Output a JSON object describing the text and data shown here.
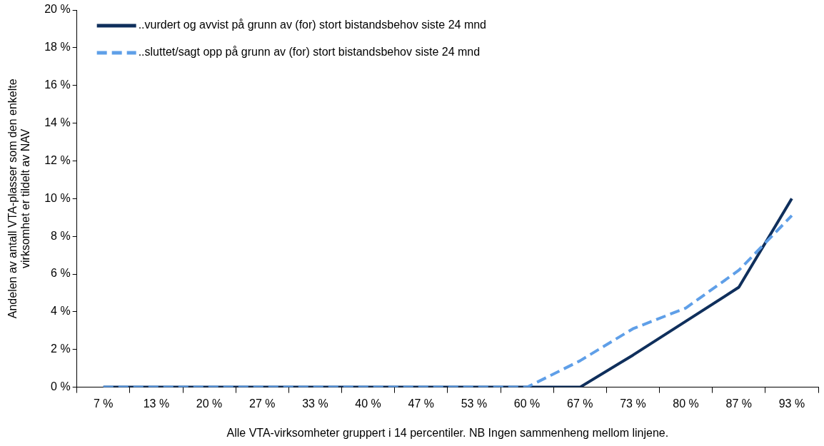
{
  "chart_data": {
    "type": "line",
    "xlabel": "Alle VTA-virksomheter gruppert i 14 percentiler. NB Ingen sammenheng mellom linjene.",
    "ylabel": "Andelen av antall VTA-plasser som den enkelte\nvirksomhet er tildelt av NAV",
    "categories": [
      "7 %",
      "13 %",
      "20 %",
      "27 %",
      "33 %",
      "40 %",
      "47 %",
      "53 %",
      "60 %",
      "67 %",
      "73 %",
      "80 %",
      "87 %",
      "93 %"
    ],
    "series": [
      {
        "name": "..vurdert og avvist på grunn av (for) stort bistandsbehov siste 24 mnd",
        "color": "#0f2f5c",
        "line_style": "solid",
        "values": [
          0,
          0,
          0,
          0,
          0,
          0,
          0,
          0,
          0,
          0,
          1.7,
          3.5,
          5.3,
          10
        ]
      },
      {
        "name": "..sluttet/sagt opp på grunn av (for) stort bistandsbehov siste 24 mnd",
        "color": "#5f9fe8",
        "line_style": "dashed",
        "values": [
          0,
          0,
          0,
          0,
          0,
          0,
          0,
          0,
          0,
          1.4,
          3.1,
          4.2,
          6.2,
          9.1
        ]
      }
    ],
    "ylim": [
      0,
      20
    ],
    "yticks": [
      {
        "value": 0,
        "label": "0 %"
      },
      {
        "value": 2,
        "label": "2 %"
      },
      {
        "value": 4,
        "label": "4 %"
      },
      {
        "value": 6,
        "label": "6 %"
      },
      {
        "value": 8,
        "label": "8 %"
      },
      {
        "value": 10,
        "label": "10 %"
      },
      {
        "value": 12,
        "label": "12 %"
      },
      {
        "value": 14,
        "label": "14 %"
      },
      {
        "value": 16,
        "label": "16 %"
      },
      {
        "value": 18,
        "label": "18 %"
      },
      {
        "value": 20,
        "label": "20 %"
      }
    ],
    "grid": false,
    "legend": "top left",
    "marker": "none"
  }
}
